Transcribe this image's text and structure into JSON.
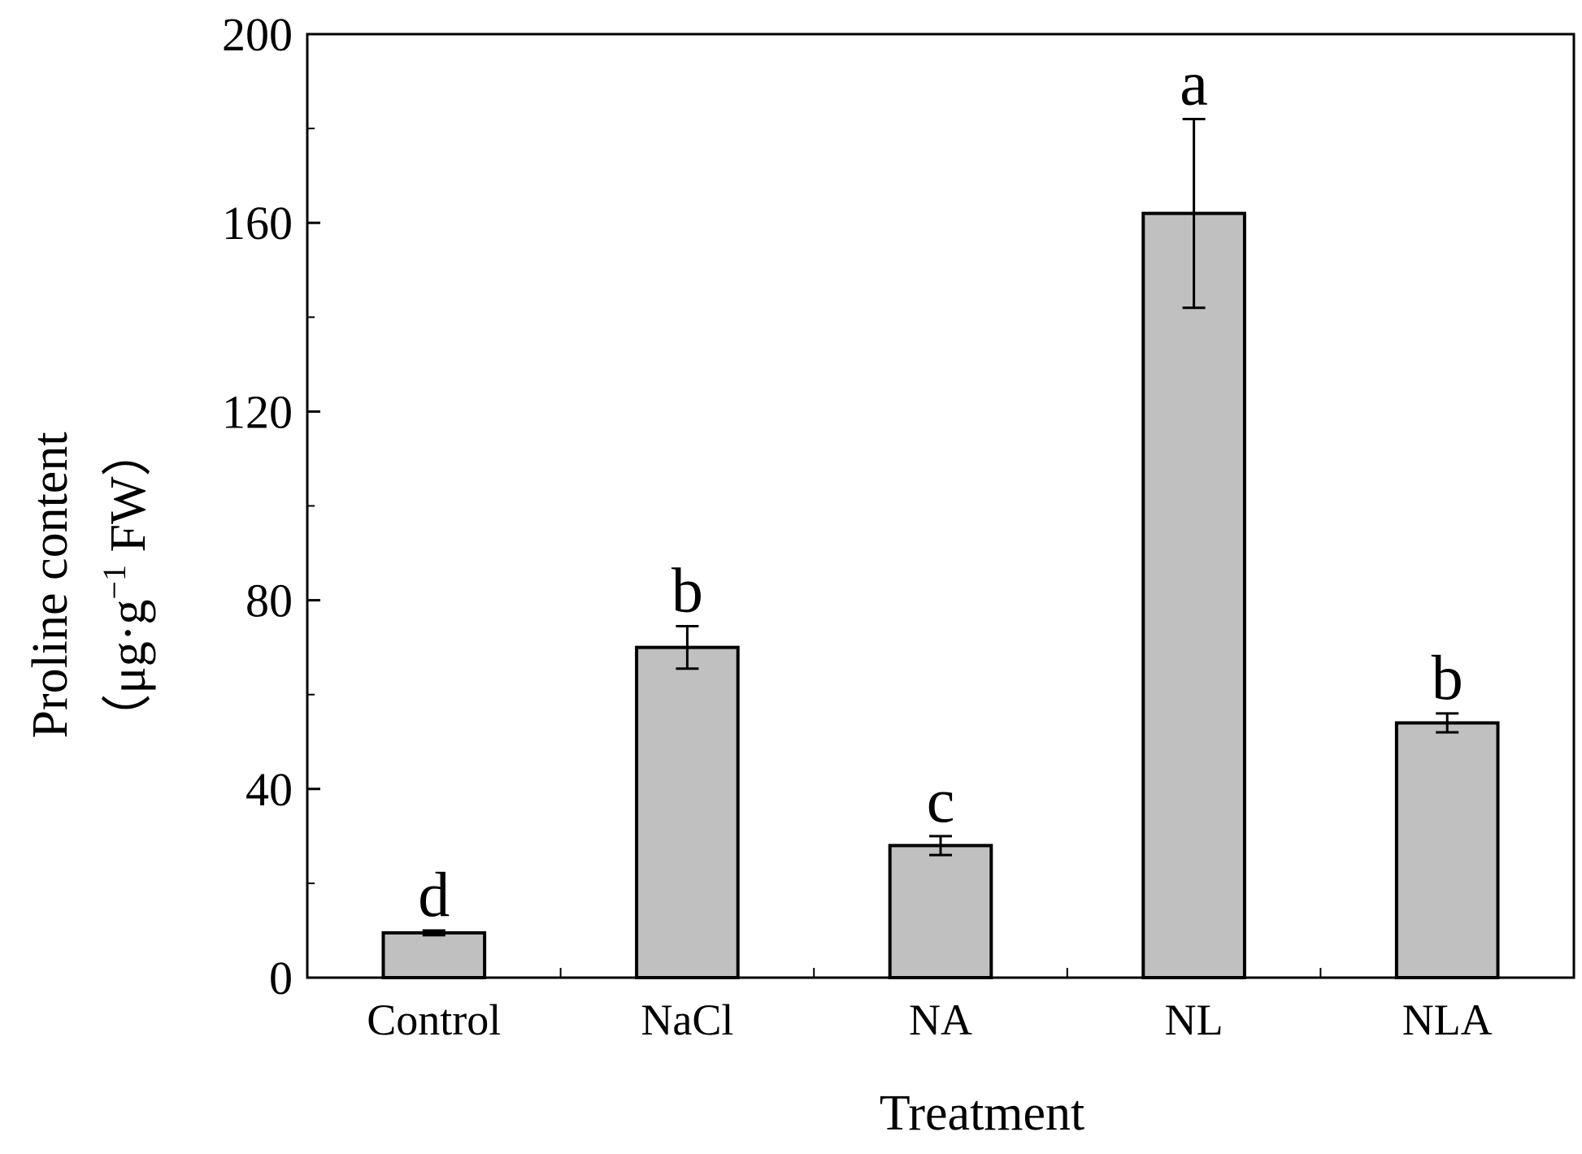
{
  "chart_data": {
    "type": "bar",
    "title": "",
    "xlabel": "Treatment",
    "ylabel": {
      "line1": "Proline content",
      "line2_prefix": "（μg·g",
      "line2_sup": "−1",
      "line2_suffix": " FW）"
    },
    "ylim": [
      0,
      200
    ],
    "yticks": [
      0,
      40,
      80,
      120,
      160,
      200
    ],
    "grid": false,
    "bar_color": "#c0c0c0",
    "categories": [
      "Control",
      "NaCl",
      "NA",
      "NL",
      "NLA"
    ],
    "series": [
      {
        "name": "Proline content",
        "values": [
          9.5,
          70.0,
          28.0,
          162.0,
          54.0
        ],
        "errors": [
          0.5,
          4.5,
          2.0,
          20.0,
          2.0
        ],
        "significance": [
          "d",
          "b",
          "c",
          "a",
          "b"
        ]
      }
    ]
  }
}
